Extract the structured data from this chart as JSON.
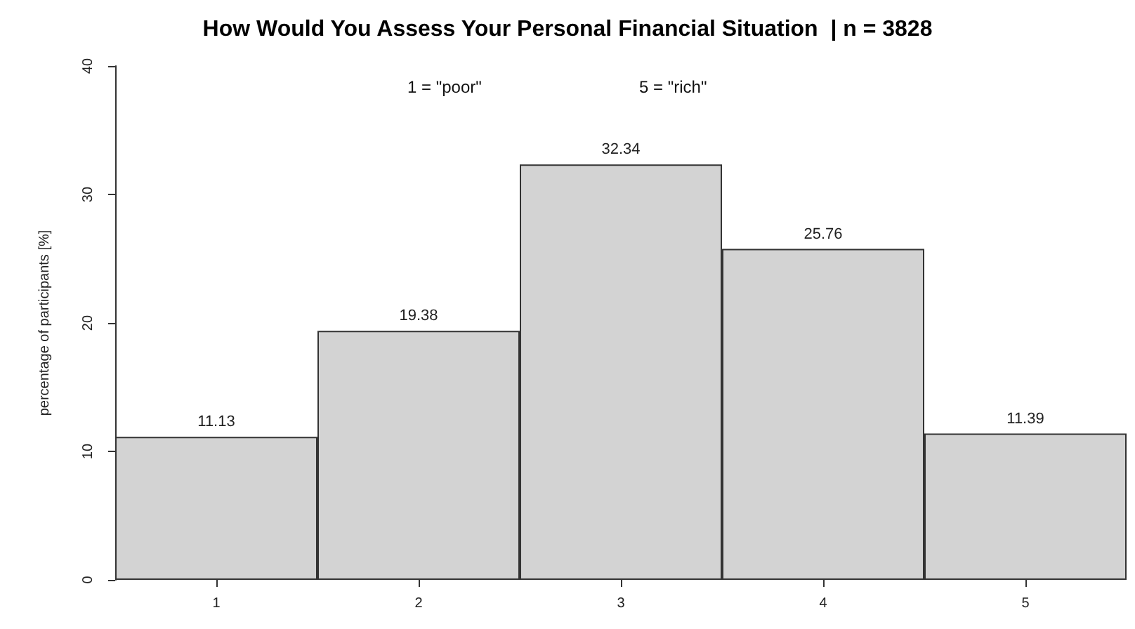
{
  "chart_data": {
    "type": "bar",
    "title": "How Would You Assess Your Personal Financial Situation  | n = 3828",
    "ylabel": "percentage of participants [%]",
    "categories": [
      "1",
      "2",
      "3",
      "4",
      "5"
    ],
    "values": [
      11.13,
      19.38,
      32.34,
      25.76,
      11.39
    ],
    "color": "#d3d3d3",
    "ylim": [
      0,
      40
    ],
    "yticks": [
      0,
      10,
      20,
      30,
      40
    ],
    "data_labels": true,
    "grid": false,
    "annotations": [
      "1 = \"poor\"",
      "5 = \"rich\""
    ]
  }
}
